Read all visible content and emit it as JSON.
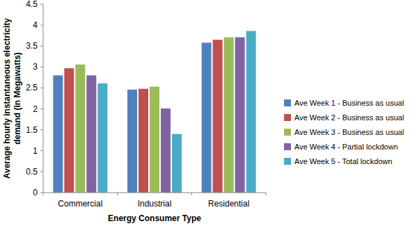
{
  "chart_data": {
    "type": "bar",
    "x_label": "Energy Consumer Type",
    "y_label": "Average hourly instantaneous electricity demand (in Megawatts)",
    "categories": [
      "Commercial",
      "Industrial",
      "Residential"
    ],
    "series": [
      {
        "name": "Ave Week 1 - Business as usual",
        "color": "#4f81bd",
        "values": [
          2.8,
          2.46,
          3.58
        ]
      },
      {
        "name": "Ave Week 2 - Business as usual",
        "color": "#c0504d",
        "values": [
          2.97,
          2.48,
          3.65
        ]
      },
      {
        "name": "Ave Week 3 - Business as usual",
        "color": "#9bbb59",
        "values": [
          3.06,
          2.53,
          3.71
        ]
      },
      {
        "name": "Ave Week 4 - Partial lockdown",
        "color": "#8064a2",
        "values": [
          2.8,
          2.01,
          3.71
        ]
      },
      {
        "name": "Ave Week 5 - Total lockdown",
        "color": "#4bacc6",
        "values": [
          2.61,
          1.4,
          3.86
        ]
      }
    ],
    "ylim": [
      0,
      4.5
    ],
    "yticks": [
      0,
      0.5,
      1,
      1.5,
      2,
      2.5,
      3,
      3.5,
      4,
      4.5
    ],
    "grid": false,
    "legend": "right"
  }
}
